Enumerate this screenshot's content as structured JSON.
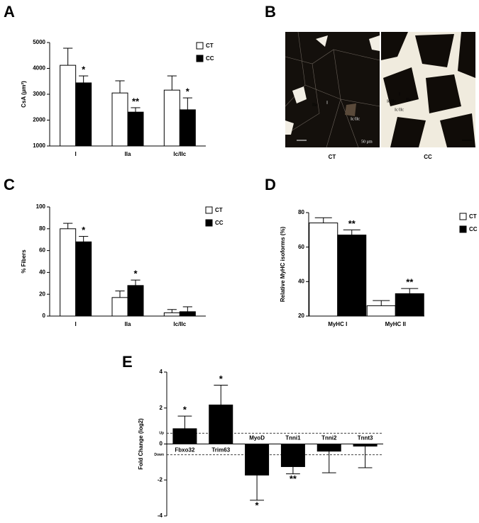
{
  "chart_data": [
    {
      "type": "bar",
      "panel": "A",
      "ylabel": "CsA (µm²)",
      "categories": [
        "I",
        "IIa",
        "Ic/IIc"
      ],
      "series": [
        {
          "name": "CT",
          "color": "#ffffff",
          "values": [
            4120,
            3050,
            3160
          ],
          "errors": [
            660,
            470,
            550
          ]
        },
        {
          "name": "CC",
          "color": "#000000",
          "values": [
            3440,
            2310,
            2400
          ],
          "errors": [
            270,
            170,
            460
          ],
          "significance": [
            "*",
            "**",
            "*"
          ]
        }
      ],
      "ylim": [
        1000,
        5000
      ],
      "yticks": [
        1000,
        2000,
        3000,
        4000,
        5000
      ],
      "legend": "upper right"
    },
    {
      "type": "bar",
      "panel": "C",
      "ylabel": "% Fibers",
      "categories": [
        "I",
        "IIa",
        "Ic/IIc"
      ],
      "series": [
        {
          "name": "CT",
          "color": "#ffffff",
          "values": [
            80,
            17,
            3
          ],
          "errors": [
            5,
            6,
            3
          ]
        },
        {
          "name": "CC",
          "color": "#000000",
          "values": [
            68,
            28,
            4
          ],
          "errors": [
            5,
            5,
            4.5
          ],
          "significance": [
            "*",
            "*",
            null
          ]
        }
      ],
      "ylim": [
        0,
        100
      ],
      "yticks": [
        0,
        20,
        40,
        60,
        80,
        100
      ],
      "legend": "upper right"
    },
    {
      "type": "bar",
      "panel": "D",
      "ylabel": "Relative MyHC isoforms (%)",
      "categories": [
        "MyHC I",
        "MyHC II"
      ],
      "series": [
        {
          "name": "CT",
          "color": "#ffffff",
          "values": [
            74,
            26
          ],
          "errors": [
            3,
            3
          ]
        },
        {
          "name": "CC",
          "color": "#000000",
          "values": [
            67,
            33
          ],
          "errors": [
            3,
            3
          ],
          "significance": [
            "**",
            "**"
          ]
        }
      ],
      "ylim": [
        20,
        80
      ],
      "yticks": [
        20,
        40,
        60,
        80
      ],
      "legend": "upper right"
    },
    {
      "type": "bar",
      "panel": "E",
      "ylabel": "Fold Change (log2)",
      "categories": [
        "Fbxo32",
        "Trim63",
        "MyoD",
        "Tnni1",
        "Tnni2",
        "Tnnt3"
      ],
      "series": [
        {
          "color": "#000000",
          "values": [
            0.85,
            2.17,
            -1.73,
            -1.26,
            -0.4,
            -0.12
          ],
          "errors": [
            0.7,
            1.1,
            1.4,
            0.4,
            1.2,
            1.2
          ],
          "significance": [
            "*",
            "*",
            "*",
            "**",
            null,
            null
          ]
        }
      ],
      "ylim": [
        -4,
        4
      ],
      "yticks": [
        -4,
        -2,
        0,
        2,
        4
      ],
      "thresholds": [
        {
          "value": 0.6,
          "label": "Up"
        },
        {
          "value": -0.6,
          "label": "Down"
        }
      ]
    }
  ],
  "micrograph": {
    "panel": "B",
    "labels": [
      "CT",
      "CC"
    ],
    "left_annotations": [
      "IIa",
      "I",
      "Ic/IIc",
      "50 µm"
    ],
    "right_annotations": [
      "Ic/IIc",
      "I",
      "IIa",
      "Ic/IIc"
    ]
  }
}
